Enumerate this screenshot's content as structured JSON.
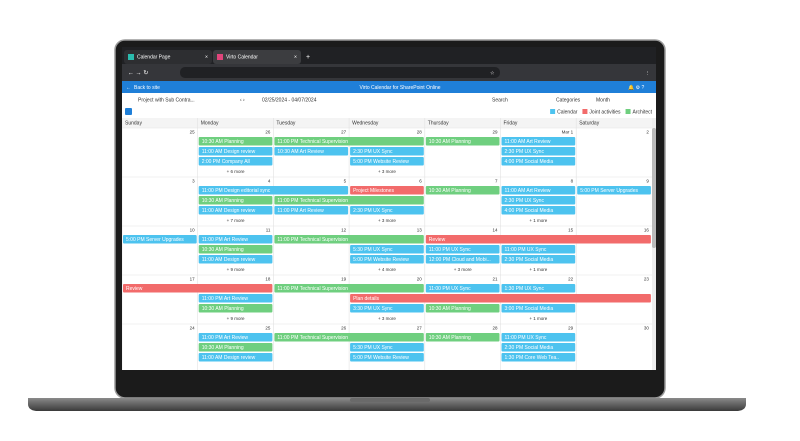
{
  "browser": {
    "tabs": [
      "Calendar Page",
      "Virto Calendar"
    ]
  },
  "header": {
    "back": "Back to site",
    "title": "Virto Calendar for SharePoint Online"
  },
  "toolbar": {
    "calendar": "Project with Sub Contra...",
    "range": "02/25/2024 - 04/07/2024",
    "search": "Search",
    "categories": "Categories",
    "view": "Month"
  },
  "legend": [
    {
      "name": "Calendar",
      "color": "#4dc3ef"
    },
    {
      "name": "Joint activities",
      "color": "#f26b6b"
    },
    {
      "name": "Architect",
      "color": "#6fcf7f"
    }
  ],
  "weekdays": [
    "Sunday",
    "Monday",
    "Tuesday",
    "Wednesday",
    "Thursday",
    "Friday",
    "Saturday"
  ],
  "weeks": [
    {
      "days": [
        {
          "date": 25,
          "events": []
        },
        {
          "date": 26,
          "events": [
            {
              "text": "10:30 AM  Planning",
              "color": "#6fcf7f"
            },
            {
              "text": "11:00 AM  Design review",
              "color": "#4dc3ef"
            },
            {
              "text": "2:00 PM  Company All",
              "color": "#4dc3ef"
            }
          ],
          "more": "+ 6 more"
        },
        {
          "date": 27,
          "events": [
            {
              "text": "11:00 PM  Technical Supervision",
              "color": "#6fcf7f",
              "days": 2
            },
            {
              "text": "10:30 AM  Art Review",
              "color": "#4dc3ef"
            }
          ]
        },
        {
          "date": 28,
          "events": [
            {
              "text": "2:30 PM  UX Sync",
              "color": "#4dc3ef"
            },
            {
              "text": "5:00 PM  Website Review",
              "color": "#4dc3ef"
            }
          ],
          "more": "+ 3 more"
        },
        {
          "date": 29,
          "events": [
            {
              "text": "10:30 AM  Planning",
              "color": "#6fcf7f"
            }
          ]
        },
        {
          "date": "Mar 1",
          "events": [
            {
              "text": "11:00 AM  Art Review",
              "color": "#4dc3ef"
            },
            {
              "text": "2:30 PM  UX Sync",
              "color": "#4dc3ef"
            },
            {
              "text": "4:00 PM  Social Media",
              "color": "#4dc3ef"
            }
          ]
        },
        {
          "date": 2,
          "events": []
        }
      ]
    },
    {
      "days": [
        {
          "date": 3,
          "events": []
        },
        {
          "date": 4,
          "events": [
            {
              "text": "11:00 PM  Design editorial sync",
              "color": "#4dc3ef",
              "days": 2
            },
            {
              "text": "10:30 AM  Planning",
              "color": "#6fcf7f"
            },
            {
              "text": "11:00 AM  Design review",
              "color": "#4dc3ef"
            }
          ],
          "more": "+ 7 more"
        },
        {
          "date": 5,
          "events": [
            {
              "text": "11:00 PM  Technical Supervision",
              "color": "#6fcf7f",
              "days": 2
            },
            {
              "text": "11:00 PM  Art Review",
              "color": "#4dc3ef"
            }
          ]
        },
        {
          "date": 6,
          "events": [
            {
              "text": "Project Milestones",
              "color": "#f26b6b"
            },
            {
              "text": "2:30 PM  UX Sync",
              "color": "#4dc3ef"
            }
          ],
          "more": "+ 3 more"
        },
        {
          "date": 7,
          "events": [
            {
              "text": "10:30 AM  Planning",
              "color": "#6fcf7f"
            }
          ]
        },
        {
          "date": 8,
          "events": [
            {
              "text": "11:00 AM  Art Review",
              "color": "#4dc3ef"
            },
            {
              "text": "2:30 PM  UX Sync",
              "color": "#4dc3ef"
            },
            {
              "text": "4:00 PM  Social Media",
              "color": "#4dc3ef"
            }
          ],
          "more": "+ 1 more"
        },
        {
          "date": 9,
          "events": [
            {
              "text": "5:00 PM  Server Upgrades",
              "color": "#4dc3ef"
            }
          ]
        }
      ]
    },
    {
      "days": [
        {
          "date": 10,
          "events": [
            {
              "text": "5:00 PM  Server Upgrades",
              "color": "#4dc3ef"
            }
          ]
        },
        {
          "date": 11,
          "events": [
            {
              "text": "11:00 PM  Art Review",
              "color": "#4dc3ef"
            },
            {
              "text": "10:30 AM  Planning",
              "color": "#6fcf7f"
            },
            {
              "text": "11:00 AM  Design review",
              "color": "#4dc3ef"
            }
          ],
          "more": "+ 9 more"
        },
        {
          "date": 12,
          "events": [
            {
              "text": "11:00 PM  Technical Supervision",
              "color": "#6fcf7f",
              "days": 2
            }
          ]
        },
        {
          "date": 13,
          "events": [
            {
              "text": "5:30 PM  UX Sync",
              "color": "#4dc3ef"
            },
            {
              "text": "5:00 PM  Website Review",
              "color": "#4dc3ef"
            }
          ],
          "more": "+ 4 more"
        },
        {
          "date": 14,
          "events": [
            {
              "text": "Review",
              "color": "#f26b6b",
              "days": 3
            },
            {
              "text": "11:00 PM  UX Sync",
              "color": "#4dc3ef"
            },
            {
              "text": "12:00 PM  Cloud and Mobi...",
              "color": "#4dc3ef"
            }
          ],
          "more": "+ 3 more"
        },
        {
          "date": 15,
          "events": [
            {
              "text": "11:00 PM  UX Sync",
              "color": "#4dc3ef"
            },
            {
              "text": "2:30 PM  Social Media",
              "color": "#4dc3ef"
            }
          ],
          "more": "+ 1 more"
        },
        {
          "date": 16,
          "events": []
        }
      ]
    },
    {
      "days": [
        {
          "date": 17,
          "events": [
            {
              "text": "Review",
              "color": "#f26b6b",
              "days": 2
            }
          ]
        },
        {
          "date": 18,
          "events": [
            {
              "text": "11:00 PM  Art Review",
              "color": "#4dc3ef"
            },
            {
              "text": "10:30 AM  Planning",
              "color": "#6fcf7f"
            }
          ],
          "more": "+ 9 more"
        },
        {
          "date": 19,
          "events": [
            {
              "text": "11:00 PM  Technical Supervision",
              "color": "#6fcf7f",
              "days": 2
            }
          ]
        },
        {
          "date": 20,
          "events": [
            {
              "text": "Plan details",
              "color": "#f26b6b",
              "days": 4
            },
            {
              "text": "3:30 PM  UX Sync",
              "color": "#4dc3ef"
            }
          ],
          "more": "+ 3 more"
        },
        {
          "date": 21,
          "events": [
            {
              "text": "11:00 PM  UX Sync",
              "color": "#4dc3ef"
            },
            {
              "text": "10:30 AM  Planning",
              "color": "#6fcf7f"
            }
          ]
        },
        {
          "date": 22,
          "events": [
            {
              "text": "1:30 PM  UX Sync",
              "color": "#4dc3ef"
            },
            {
              "text": "3:00 PM  Social Media",
              "color": "#4dc3ef"
            }
          ],
          "more": "+ 1 more"
        },
        {
          "date": 23,
          "events": []
        }
      ]
    },
    {
      "days": [
        {
          "date": 24,
          "events": []
        },
        {
          "date": 25,
          "events": [
            {
              "text": "11:00 PM  Art Review",
              "color": "#4dc3ef"
            },
            {
              "text": "10:30 AM  Planning",
              "color": "#6fcf7f"
            },
            {
              "text": "11:00 AM  Design review",
              "color": "#4dc3ef"
            }
          ]
        },
        {
          "date": 26,
          "events": [
            {
              "text": "11:00 PM  Technical Supervision",
              "color": "#6fcf7f",
              "days": 2
            }
          ]
        },
        {
          "date": 27,
          "events": [
            {
              "text": "5:30 PM  UX Sync",
              "color": "#4dc3ef"
            },
            {
              "text": "5:00 PM  Website Review",
              "color": "#4dc3ef"
            }
          ]
        },
        {
          "date": 28,
          "events": [
            {
              "text": "10:30 AM  Planning",
              "color": "#6fcf7f"
            }
          ]
        },
        {
          "date": 29,
          "events": [
            {
              "text": "11:00 PM  UX Sync",
              "color": "#4dc3ef"
            },
            {
              "text": "2:30 PM  Social Media",
              "color": "#4dc3ef"
            },
            {
              "text": "1:30 PM  Core Web Tea..",
              "color": "#4dc3ef"
            }
          ]
        },
        {
          "date": 30,
          "events": []
        }
      ]
    }
  ]
}
